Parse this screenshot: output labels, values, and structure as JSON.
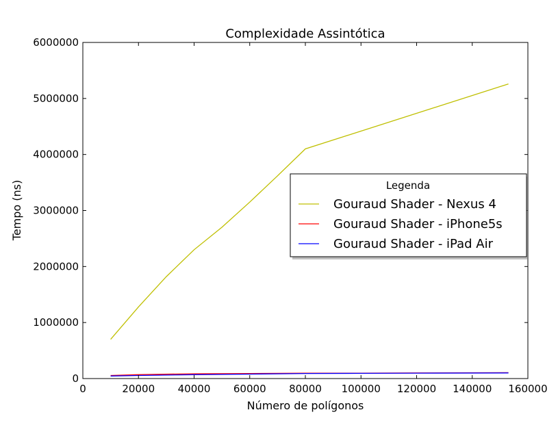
{
  "chart_data": {
    "type": "line",
    "title": "Complexidade Assintótica",
    "xlabel": "Número de polígonos",
    "ylabel": "Tempo (ns)",
    "xlim": [
      0,
      160000
    ],
    "ylim": [
      0,
      6000000
    ],
    "xticks": [
      0,
      20000,
      40000,
      60000,
      80000,
      100000,
      120000,
      140000,
      160000
    ],
    "yticks": [
      0,
      1000000,
      2000000,
      3000000,
      4000000,
      5000000,
      6000000
    ],
    "xtick_labels": [
      "0",
      "20000",
      "40000",
      "60000",
      "80000",
      "100000",
      "120000",
      "140000",
      "160000"
    ],
    "ytick_labels": [
      "0",
      "1000000",
      "2000000",
      "3000000",
      "4000000",
      "5000000",
      "6000000"
    ],
    "grid": false,
    "legend": {
      "title": "Legenda",
      "placement": "center-right"
    },
    "series": [
      {
        "name": "Gouraud Shader - Nexus 4",
        "color": "#bfbf00",
        "x": [
          10000,
          20000,
          30000,
          40000,
          50000,
          60000,
          70000,
          80000,
          153000
        ],
        "y": [
          700000,
          1280000,
          1820000,
          2300000,
          2700000,
          3150000,
          3620000,
          4100000,
          5260000
        ]
      },
      {
        "name": "Gouraud Shader - iPhone5s",
        "color": "#ff0000",
        "x": [
          10000,
          20000,
          40000,
          60000,
          80000,
          100000,
          120000,
          153000
        ],
        "y": [
          55000,
          70000,
          85000,
          90000,
          95000,
          97000,
          100000,
          105000
        ]
      },
      {
        "name": "Gouraud Shader - iPad Air",
        "color": "#0000ff",
        "x": [
          10000,
          20000,
          40000,
          60000,
          80000,
          100000,
          120000,
          153000
        ],
        "y": [
          45000,
          55000,
          70000,
          80000,
          90000,
          93000,
          97000,
          100000
        ]
      }
    ]
  }
}
